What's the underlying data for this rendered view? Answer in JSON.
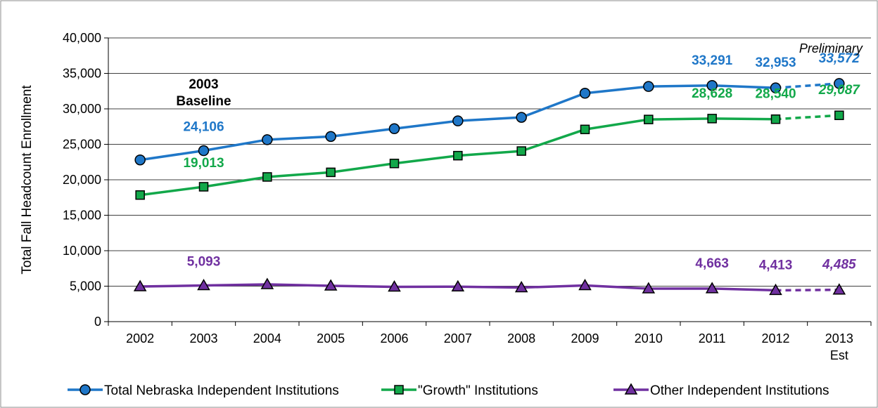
{
  "chart_data": {
    "type": "line",
    "title": "",
    "xlabel": "",
    "ylabel": "Total Fall Headcount Enrollment",
    "ylim": [
      0,
      40000
    ],
    "y_ticks": [
      "0",
      "5,000",
      "10,000",
      "15,000",
      "20,000",
      "25,000",
      "30,000",
      "35,000",
      "40,000"
    ],
    "categories": [
      "2002",
      "2003",
      "2004",
      "2005",
      "2006",
      "2007",
      "2008",
      "2009",
      "2010",
      "2011",
      "2012",
      "2013"
    ],
    "category_sublabels": [
      "",
      "",
      "",
      "",
      "",
      "",
      "",
      "",
      "",
      "",
      "",
      "Est"
    ],
    "grid": true,
    "legend_position": "bottom",
    "series": [
      {
        "name": "Total Nebraska Independent Institutions",
        "color": "#1F77C8",
        "marker": "circle",
        "values": [
          22800,
          24106,
          25650,
          26100,
          27200,
          28300,
          28800,
          32200,
          33150,
          33291,
          32953,
          33572
        ],
        "labels": [
          {
            "index": 1,
            "text": "24,106"
          },
          {
            "index": 9,
            "text": "33,291"
          },
          {
            "index": 10,
            "text": "32,953"
          },
          {
            "index": 11,
            "text": "33,572",
            "italic": true
          }
        ]
      },
      {
        "name": "\"Growth\" Institutions",
        "color": "#12A84A",
        "marker": "square",
        "values": [
          17850,
          19013,
          20400,
          21050,
          22300,
          23400,
          24050,
          27100,
          28500,
          28628,
          28540,
          29087
        ],
        "labels": [
          {
            "index": 1,
            "text": "19,013"
          },
          {
            "index": 9,
            "text": "28,628"
          },
          {
            "index": 10,
            "text": "28,540"
          },
          {
            "index": 11,
            "text": "29,087",
            "italic": true
          }
        ]
      },
      {
        "name": "Other Independent Institutions",
        "color": "#7030A0",
        "marker": "triangle",
        "values": [
          4950,
          5093,
          5250,
          5050,
          4900,
          4930,
          4800,
          5100,
          4650,
          4663,
          4413,
          4485
        ],
        "labels": [
          {
            "index": 1,
            "text": "5,093"
          },
          {
            "index": 9,
            "text": "4,663"
          },
          {
            "index": 10,
            "text": "4,413"
          },
          {
            "index": 11,
            "text": "4,485",
            "italic": true
          }
        ]
      }
    ],
    "estimated_from_index": 10,
    "annotations": {
      "baseline_line1": "2003",
      "baseline_line2": "Baseline",
      "preliminary": "Preliminary"
    }
  }
}
